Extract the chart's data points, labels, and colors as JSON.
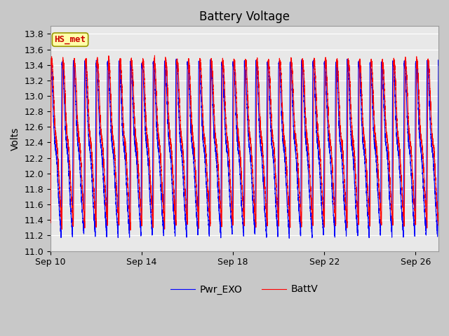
{
  "title": "Battery Voltage",
  "ylabel": "Volts",
  "xlabel": "",
  "ylim": [
    11.0,
    13.9
  ],
  "yticks": [
    11.0,
    11.2,
    11.4,
    11.6,
    11.8,
    12.0,
    12.2,
    12.4,
    12.6,
    12.8,
    13.0,
    13.2,
    13.4,
    13.6,
    13.8
  ],
  "xtick_labels": [
    "Sep 10",
    "Sep 14",
    "Sep 18",
    "Sep 22",
    "Sep 26"
  ],
  "xtick_positions": [
    0,
    4,
    8,
    12,
    16
  ],
  "legend_labels": [
    "BattV",
    "Pwr_EXO"
  ],
  "legend_colors": [
    "red",
    "blue"
  ],
  "annotation_text": "HS_met",
  "annotation_color": "#cc0000",
  "annotation_bg": "#ffffaa",
  "annotation_border": "#999900",
  "fig_bg": "#c8c8c8",
  "plot_bg": "#e8e8e8",
  "grid_color": "white",
  "title_fontsize": 12,
  "label_fontsize": 10,
  "tick_fontsize": 9,
  "n_days": 17,
  "pts_per_day": 480,
  "batt_high": 13.45,
  "batt_low": 11.33,
  "pwr_high": 13.42,
  "pwr_low": 11.2,
  "half_period": 0.5,
  "noise_batt": 0.025,
  "noise_pwr": 0.02
}
